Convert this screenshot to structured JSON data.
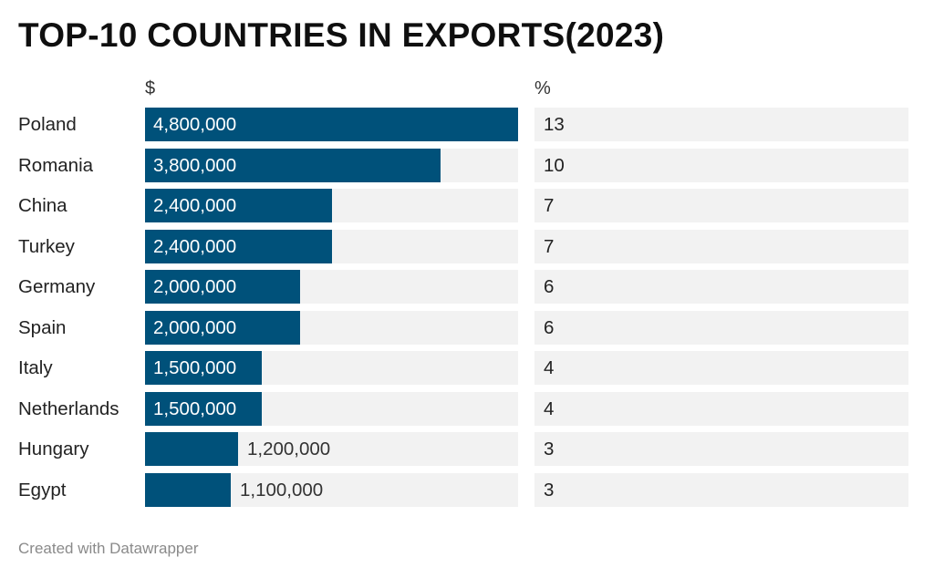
{
  "title": "TOP-10 COUNTRIES IN EXPORTS(2023)",
  "footer": "Created with Datawrapper",
  "colors": {
    "bar": "#00517a",
    "track": "#f2f2f2"
  },
  "chart_data": {
    "type": "table",
    "title": "TOP-10 COUNTRIES IN EXPORTS(2023)",
    "columns": [
      "",
      "$",
      "%"
    ],
    "categories": [
      "Poland",
      "Romania",
      "China",
      "Turkey",
      "Germany",
      "Spain",
      "Italy",
      "Netherlands",
      "Hungary",
      "Egypt"
    ],
    "series": [
      {
        "name": "$",
        "values": [
          4800000,
          3800000,
          2400000,
          2400000,
          2000000,
          2000000,
          1500000,
          1500000,
          1200000,
          1100000
        ]
      },
      {
        "name": "%",
        "values": [
          13,
          10,
          7,
          7,
          6,
          6,
          4,
          4,
          3,
          3
        ]
      }
    ],
    "value_labels": [
      "4,800,000",
      "3,800,000",
      "2,400,000",
      "2,400,000",
      "2,000,000",
      "2,000,000",
      "1,500,000",
      "1,500,000",
      "1,200,000",
      "1,100,000"
    ],
    "xlim": [
      0,
      4800000
    ]
  }
}
